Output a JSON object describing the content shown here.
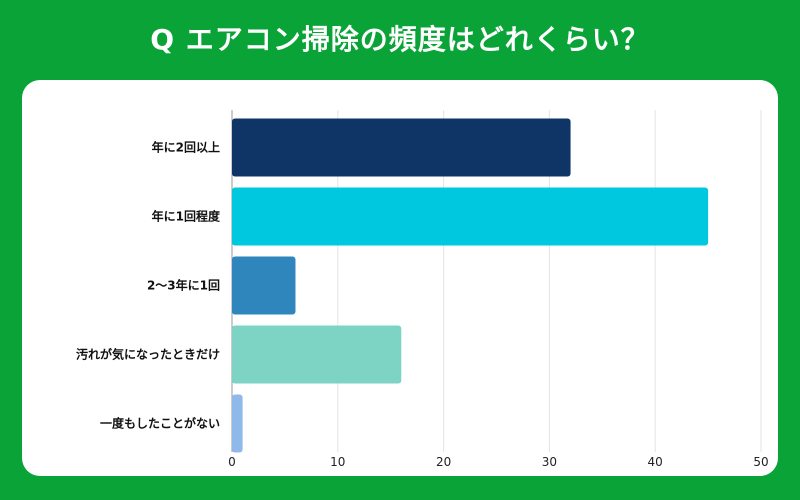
{
  "title": "Q エアコン掃除の頻度はどれくらい？",
  "chart_data": {
    "type": "bar",
    "orientation": "horizontal",
    "title": "Q エアコン掃除の頻度はどれくらい？",
    "categories": [
      "年に2回以上",
      "年に1回程度",
      "2～3年に1回",
      "汚れが気になったときだけ",
      "一度もしたことがない"
    ],
    "values": [
      32,
      45,
      6,
      16,
      1
    ],
    "colors": [
      "#0f3466",
      "#00c8df",
      "#2e86bd",
      "#7dd4c4",
      "#8fb9ea"
    ],
    "xlim": [
      0,
      50
    ],
    "xticks": [
      0,
      10,
      20,
      30,
      40,
      50
    ],
    "xlabel": "",
    "ylabel": "",
    "grid": true
  }
}
